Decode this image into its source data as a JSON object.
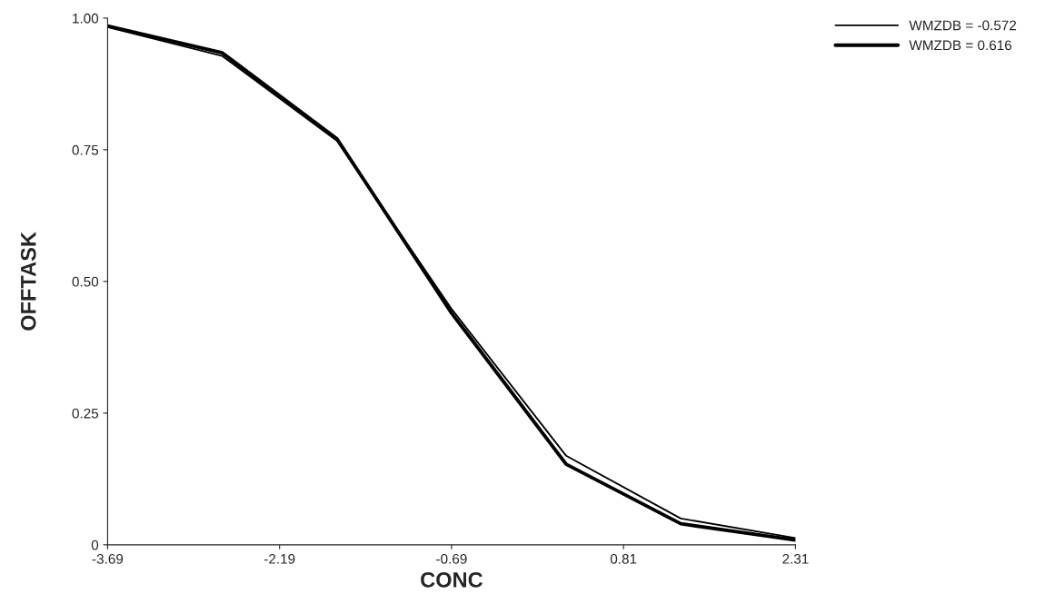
{
  "chart_data": {
    "type": "line",
    "xlabel": "CONC",
    "ylabel": "OFFTASK",
    "x": [
      -3.69,
      -2.69,
      -1.69,
      -0.69,
      0.31,
      1.31,
      2.31
    ],
    "series": [
      {
        "name": "WMZDB = -0.572",
        "color": "#000000",
        "values": [
          0.983,
          0.928,
          0.767,
          0.448,
          0.169,
          0.05,
          0.013
        ]
      },
      {
        "name": "WMZDB = 0.616",
        "color": "#000000",
        "values": [
          0.985,
          0.934,
          0.771,
          0.44,
          0.153,
          0.04,
          0.009
        ]
      }
    ],
    "xlim": [
      -3.69,
      2.31
    ],
    "xticks": [
      -3.69,
      -2.19,
      -0.69,
      0.81,
      2.31
    ],
    "ylim": [
      0,
      1
    ],
    "yticks": [
      {
        "value": 0,
        "label": "0"
      },
      {
        "value": 0.25,
        "label": "0.25"
      },
      {
        "value": 0.5,
        "label": "0.50"
      },
      {
        "value": 0.75,
        "label": "0.75"
      },
      {
        "value": 1,
        "label": "1.00"
      }
    ],
    "grid": false,
    "legend": "top right",
    "marker": "none",
    "line_style": "solid"
  }
}
